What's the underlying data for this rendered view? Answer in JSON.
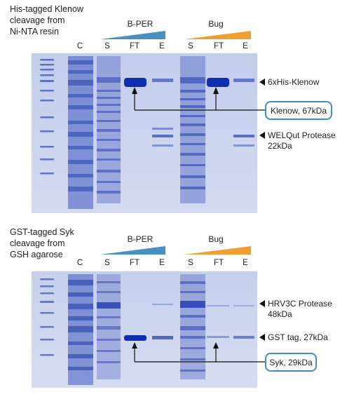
{
  "panels": [
    {
      "title_lines": [
        "His-tagged Klenow",
        "cleavage from",
        "Ni-NTA resin"
      ],
      "groups": [
        {
          "label": "B-PER",
          "color": "#4a8fc2"
        },
        {
          "label": "Bug",
          "color": "#f0a030"
        }
      ],
      "lanes": [
        "C",
        "S",
        "FT",
        "E",
        "S",
        "FT",
        "E"
      ],
      "band_labels": [
        [
          "6xHis-Klenow"
        ],
        [
          "WELQut Protease",
          "22kDa"
        ]
      ],
      "callout": "Klenow, 67kDa"
    },
    {
      "title_lines": [
        "GST-tagged Syk",
        "cleavage from",
        "GSH agarose"
      ],
      "groups": [
        {
          "label": "B-PER",
          "color": "#4a8fc2"
        },
        {
          "label": "Bug",
          "color": "#f0a030"
        }
      ],
      "lanes": [
        "C",
        "S",
        "FT",
        "E",
        "S",
        "FT",
        "E"
      ],
      "band_labels": [
        [
          "HRV3C Protease",
          "48kDa"
        ],
        [
          "GST tag, 27kDa"
        ]
      ],
      "callout": "Syk, 29kDa"
    }
  ]
}
